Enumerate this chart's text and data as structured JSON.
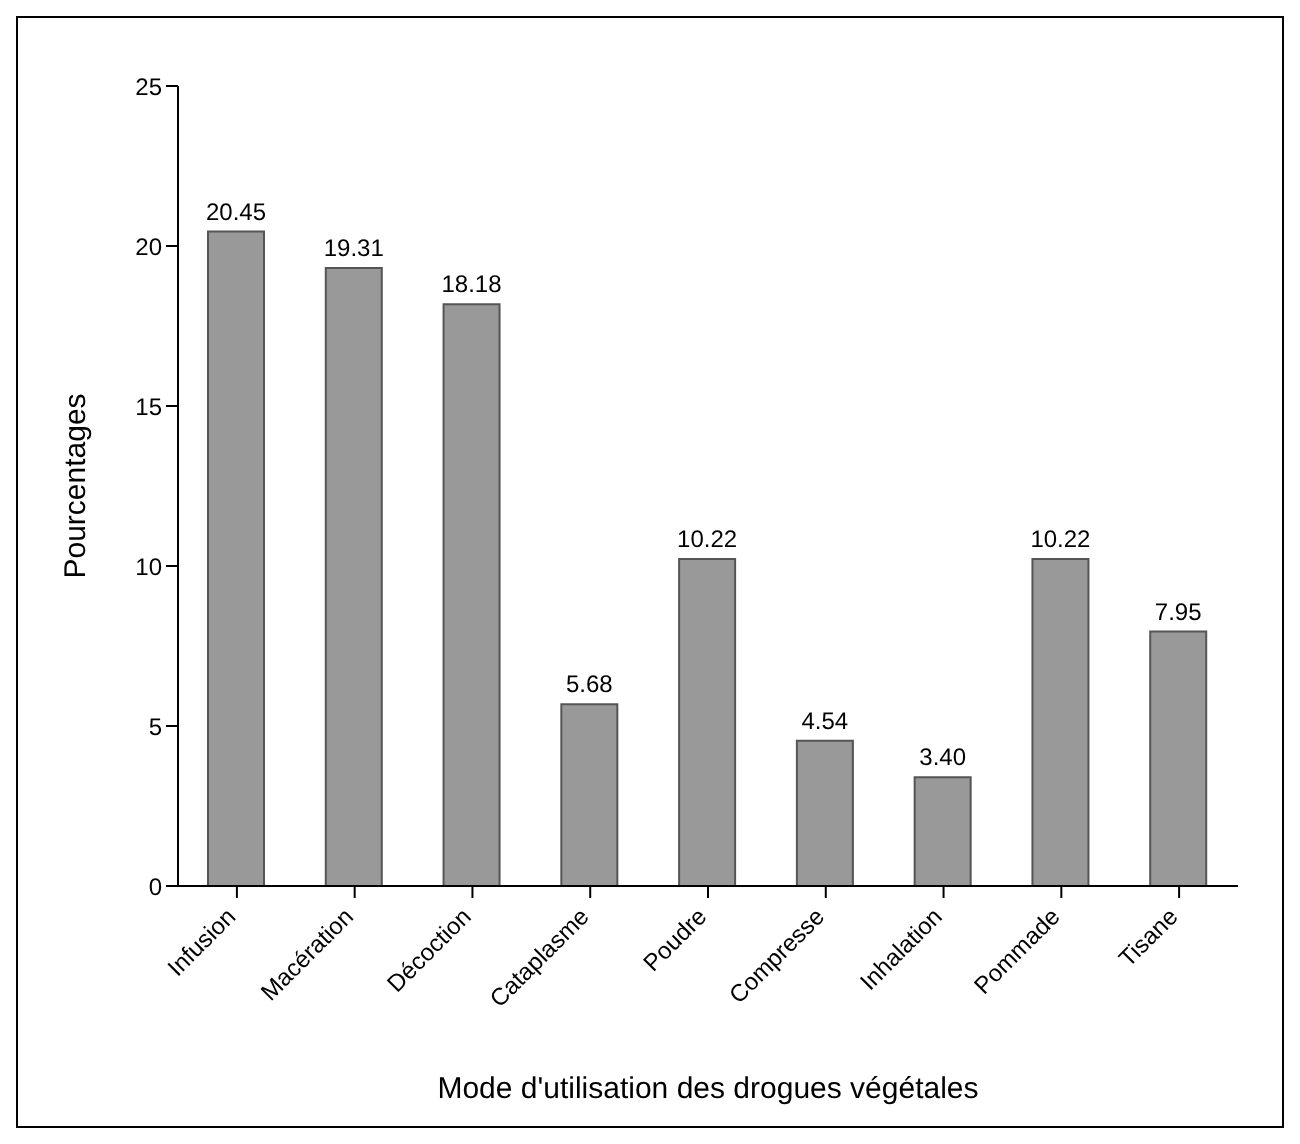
{
  "chart_data": {
    "type": "bar",
    "xlabel": "Mode d'utilisation des drogues végétales",
    "ylabel": "Pourcentages",
    "categories": [
      "Infusion",
      "Macération",
      "Décoction",
      "Cataplasme",
      "Poudre",
      "Compresse",
      "Inhalation",
      "Pommade",
      "Tisane"
    ],
    "values": [
      20.45,
      19.31,
      18.18,
      5.68,
      10.22,
      4.54,
      3.4,
      10.22,
      7.95
    ],
    "value_labels": [
      "20.45",
      "19.31",
      "18.18",
      "5.68",
      "10.22",
      "4.54",
      "3.40",
      "10.22",
      "7.95"
    ],
    "color": "#999999",
    "ylim": [
      0,
      25
    ],
    "yticks": [
      0,
      5,
      10,
      15,
      20,
      25
    ],
    "grid": false,
    "legend": false
  }
}
